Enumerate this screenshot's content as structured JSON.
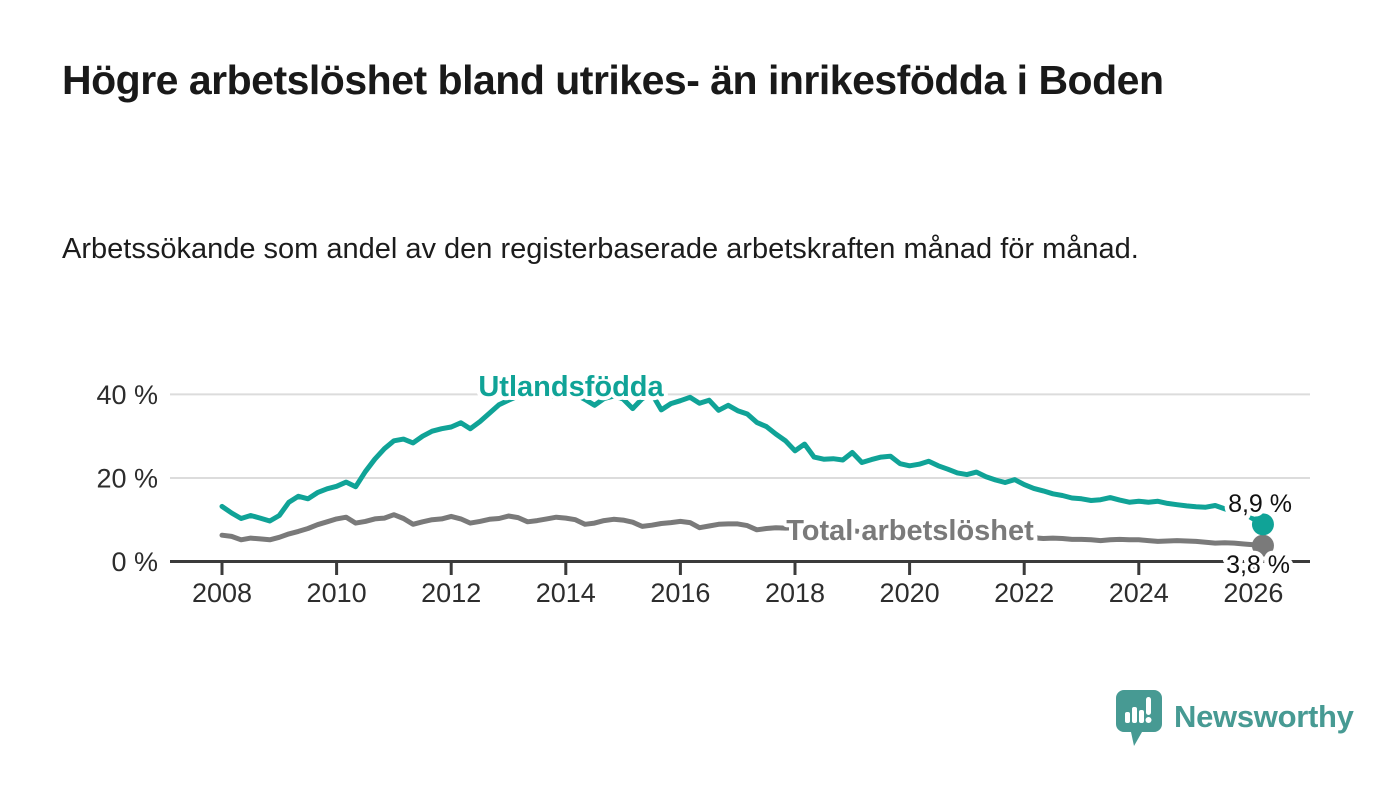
{
  "header": {
    "title": "Högre arbetslöshet bland utrikes- än inrikesfödda i Boden",
    "subtitle": "Arbetssökande som andel av den registerbaserade arbetskraften månad för månad."
  },
  "footer": {
    "brand": "Newsworthy",
    "logo_icon": "speech-bubble-bar-chart-exclamation",
    "brand_color": "#479a93"
  },
  "colors": {
    "foreign_born_series": "#10a397",
    "total_series": "#7a7a7a",
    "grid": "#dcdcdc",
    "axis": "#3b3b3b",
    "title_text": "#191919",
    "background": "#ffffff"
  },
  "chart_data": {
    "type": "line",
    "title": "Högre arbetslöshet bland utrikes- än inrikesfödda i Boden",
    "subtitle": "Arbetssökande som andel av den registerbaserade arbetskraften månad för månad.",
    "xlabel": "",
    "ylabel": "",
    "y_unit": "%",
    "x_unit": "year (monthly observations)",
    "ylim": [
      0,
      44
    ],
    "xlim": [
      2007.1,
      2027.1
    ],
    "grid": "horizontal-only",
    "legend_position": "inline-labels-on-lines",
    "yticks": [
      {
        "value": 0,
        "label": "0 %"
      },
      {
        "value": 20,
        "label": "20 %"
      },
      {
        "value": 40,
        "label": "40 %"
      }
    ],
    "xticks": [
      {
        "value": 2008,
        "label": "2008"
      },
      {
        "value": 2010,
        "label": "2010"
      },
      {
        "value": 2012,
        "label": "2012"
      },
      {
        "value": 2014,
        "label": "2014"
      },
      {
        "value": 2016,
        "label": "2016"
      },
      {
        "value": 2018,
        "label": "2018"
      },
      {
        "value": 2020,
        "label": "2020"
      },
      {
        "value": 2022,
        "label": "2022"
      },
      {
        "value": 2024,
        "label": "2024"
      },
      {
        "value": 2026,
        "label": "2026"
      }
    ],
    "series": [
      {
        "name": "Total arbetslöshet",
        "color": "#7a7a7a",
        "x0": 2008.0,
        "dx": 0.166667,
        "end_label": "3,8 %",
        "end_value": 3.8,
        "values": [
          6.3,
          6.0,
          5.2,
          5.6,
          5.4,
          5.2,
          5.8,
          6.6,
          7.2,
          7.9,
          8.8,
          9.5,
          10.2,
          10.6,
          9.2,
          9.6,
          10.2,
          10.4,
          11.2,
          10.3,
          8.9,
          9.5,
          10.0,
          10.2,
          10.8,
          10.2,
          9.2,
          9.6,
          10.1,
          10.3,
          10.9,
          10.5,
          9.5,
          9.8,
          10.2,
          10.6,
          10.4,
          10.0,
          8.9,
          9.2,
          9.8,
          10.1,
          9.9,
          9.4,
          8.4,
          8.7,
          9.1,
          9.3,
          9.6,
          9.3,
          8.1,
          8.5,
          8.9,
          9.0,
          9.0,
          8.6,
          7.6,
          7.9,
          8.1,
          8.0,
          8.1,
          7.7,
          7.1,
          7.3,
          7.5,
          7.4,
          7.4,
          7.1,
          6.7,
          6.9,
          7.0,
          6.9,
          7.0,
          7.3,
          7.8,
          7.6,
          7.3,
          7.0,
          6.9,
          6.6,
          6.2,
          6.2,
          6.1,
          5.9,
          5.9,
          5.7,
          5.5,
          5.6,
          5.5,
          5.3,
          5.3,
          5.2,
          5.0,
          5.2,
          5.3,
          5.2,
          5.2,
          5.0,
          4.8,
          4.9,
          5.0,
          4.9,
          4.8,
          4.6,
          4.4,
          4.5,
          4.4,
          4.2,
          4.0,
          3.8
        ]
      },
      {
        "name": "Utlandsfödda",
        "color": "#10a397",
        "x0": 2008.0,
        "dx": 0.166667,
        "end_label": "8,9 %",
        "end_value": 8.9,
        "values": [
          13.2,
          11.6,
          10.3,
          11.0,
          10.4,
          9.7,
          11.0,
          14.2,
          15.6,
          15.0,
          16.5,
          17.4,
          18.0,
          19.0,
          17.9,
          21.5,
          24.5,
          27.0,
          28.9,
          29.3,
          28.4,
          30.0,
          31.2,
          31.8,
          32.2,
          33.2,
          31.8,
          33.5,
          35.5,
          37.5,
          38.6,
          39.6,
          39.9,
          40.1,
          39.4,
          39.7,
          39.9,
          40.0,
          38.8,
          37.4,
          39.0,
          39.6,
          38.9,
          36.6,
          39.0,
          40.2,
          36.3,
          37.8,
          38.5,
          39.3,
          37.9,
          38.6,
          36.2,
          37.4,
          36.1,
          35.3,
          33.3,
          32.3,
          30.5,
          28.9,
          26.5,
          28.1,
          25.0,
          24.5,
          24.6,
          24.3,
          26.1,
          23.7,
          24.4,
          25.0,
          25.2,
          23.4,
          22.9,
          23.3,
          24.0,
          22.9,
          22.1,
          21.2,
          20.8,
          21.4,
          20.3,
          19.5,
          18.9,
          19.6,
          18.4,
          17.5,
          16.9,
          16.2,
          15.8,
          15.2,
          15.0,
          14.6,
          14.8,
          15.3,
          14.7,
          14.2,
          14.4,
          14.2,
          14.4,
          13.9,
          13.6,
          13.3,
          13.1,
          13.0,
          13.4,
          12.6,
          11.9,
          11.5,
          10.2,
          8.9
        ]
      }
    ]
  }
}
